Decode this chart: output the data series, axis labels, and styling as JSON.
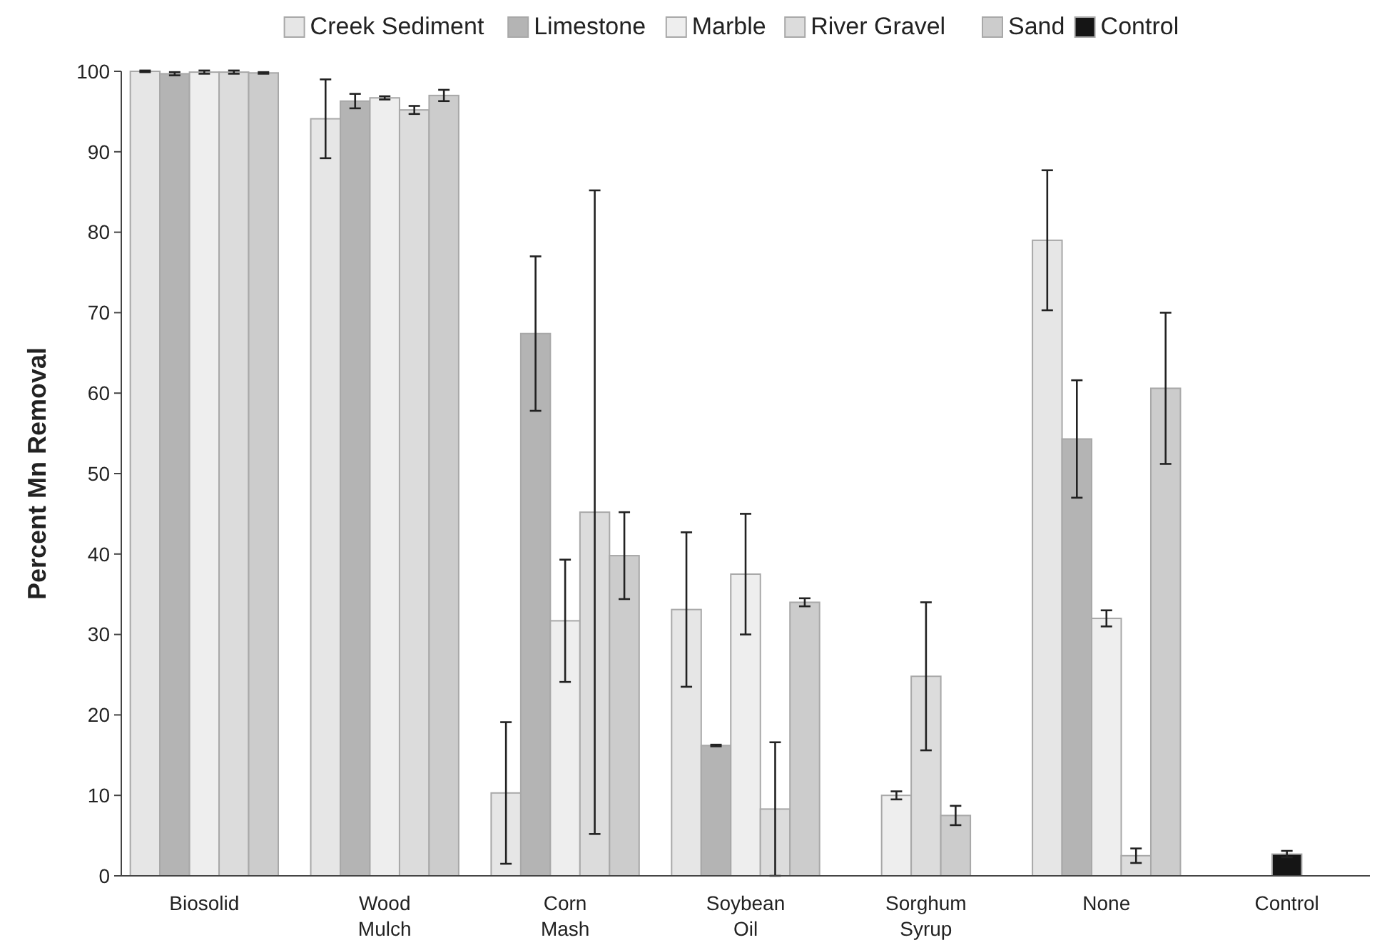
{
  "chart_data": {
    "type": "bar",
    "ylabel": "Percent Mn Removal",
    "categories": [
      "Biosolid",
      "Wood Mulch",
      "Corn Mash",
      "Soybean Oil",
      "Sorghum Syrup",
      "None",
      "Control"
    ],
    "series": [
      {
        "name": "Creek Sediment",
        "color": "#e6e6e6",
        "values": [
          100,
          94.1,
          10.3,
          33.1,
          null,
          79,
          null
        ],
        "errors": [
          0.1,
          4.9,
          8.8,
          9.6,
          null,
          8.7,
          null
        ]
      },
      {
        "name": "Limestone",
        "color": "#b4b4b4",
        "values": [
          99.7,
          96.3,
          67.4,
          16.2,
          null,
          54.3,
          null
        ],
        "errors": [
          0.2,
          0.9,
          9.6,
          0.1,
          null,
          7.3,
          null
        ]
      },
      {
        "name": "Marble",
        "color": "#eeeeee",
        "values": [
          99.9,
          96.7,
          31.7,
          37.5,
          10,
          32,
          null
        ],
        "errors": [
          0.2,
          0.2,
          7.6,
          7.5,
          0.5,
          1,
          null
        ]
      },
      {
        "name": "River Gravel",
        "color": "#dcdcdc",
        "values": [
          99.9,
          95.2,
          45.2,
          8.3,
          24.8,
          2.5,
          null
        ],
        "errors": [
          0.2,
          0.5,
          40,
          8.3,
          9.2,
          0.9,
          null
        ]
      },
      {
        "name": "Sand",
        "color": "#cccccc",
        "values": [
          99.8,
          97,
          39.8,
          34,
          7.5,
          60.6,
          null
        ],
        "errors": [
          0.1,
          0.7,
          5.4,
          0.5,
          1.2,
          9.4,
          null
        ]
      },
      {
        "name": "Control",
        "color": "#151515",
        "values": [
          null,
          null,
          null,
          null,
          null,
          null,
          2.7
        ],
        "errors": [
          null,
          null,
          null,
          null,
          null,
          null,
          0.4
        ]
      }
    ],
    "ylim": [
      0,
      100
    ],
    "yticks": [
      0,
      10,
      20,
      30,
      40,
      50,
      60,
      70,
      80,
      90,
      100
    ],
    "grid": false,
    "legend": "top"
  }
}
